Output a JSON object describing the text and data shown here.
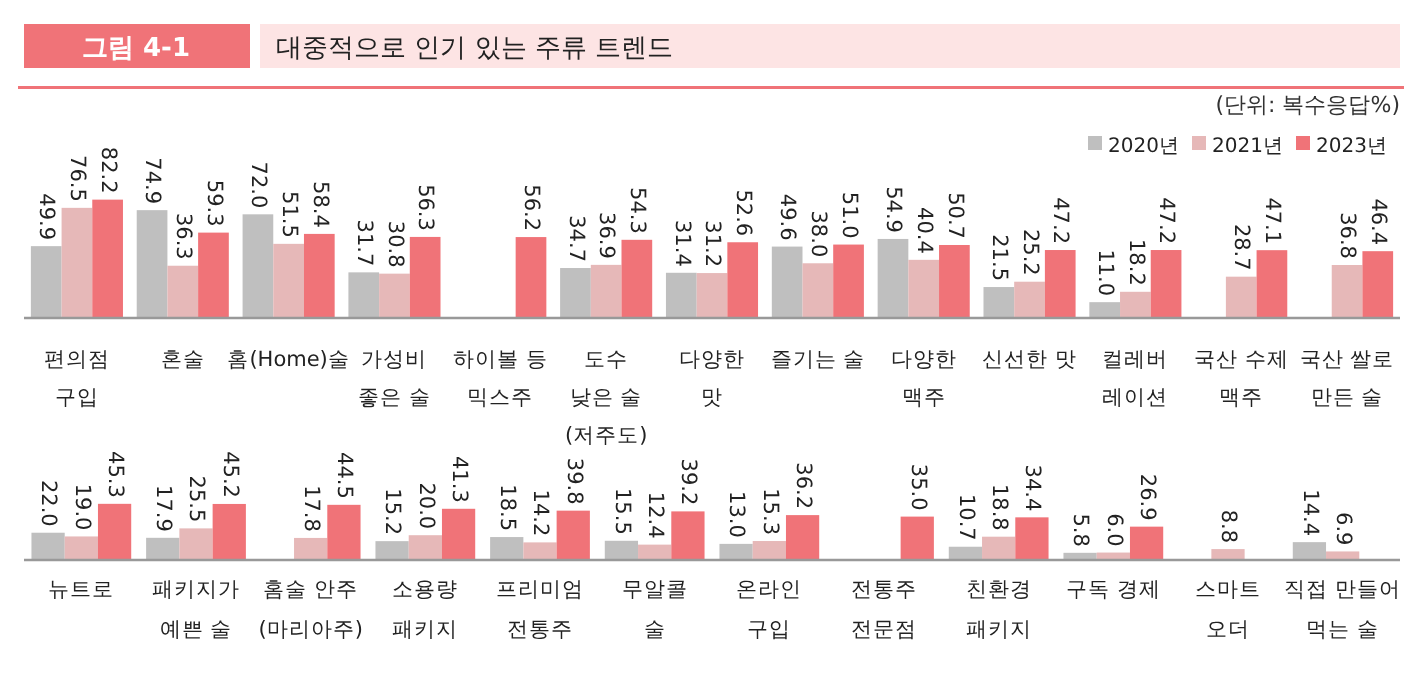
{
  "chart_data": [
    {
      "type": "bar",
      "title": "대중적으로 인기 있는 주류 트렌드",
      "annotations": [
        "그림 4-1",
        "(단위: 복수응답%)"
      ],
      "legend": "top right",
      "categories": [
        "편의점\n구입",
        "혼술",
        "홈(Home)술",
        "가성비\n좋은 술",
        "하이볼 등\n믹스주",
        "도수\n낮은 술\n(저주도)",
        "다양한\n맛",
        "즐기는 술",
        "다양한\n맥주",
        "신선한 맛",
        "컬레버\n레이션",
        "국산 수제\n맥주",
        "국산 쌀로\n만든 술"
      ],
      "series": [
        {
          "name": "2020년",
          "color": "#bfbfbf",
          "values": [
            49.9,
            74.9,
            72.0,
            31.7,
            null,
            34.7,
            31.4,
            49.6,
            54.9,
            21.5,
            11.0,
            null,
            null
          ],
          "value_labels": [
            "49.9",
            "74.9",
            "72.0",
            "31.7",
            null,
            "34.7",
            "31.4",
            "49.6",
            "54.9",
            "21.5",
            "11.0",
            null,
            null
          ]
        },
        {
          "name": "2021년",
          "color": "#e6b8b8",
          "values": [
            76.5,
            36.3,
            51.5,
            30.8,
            null,
            36.9,
            31.2,
            38.0,
            40.4,
            25.2,
            18.2,
            28.7,
            36.8
          ],
          "value_labels": [
            "76.5",
            "36.3",
            "51.5",
            "30.8",
            null,
            "36.9",
            "31.2",
            "38.0",
            "40.4",
            "25.2",
            "18.2",
            "28.7",
            "36.8"
          ]
        },
        {
          "name": "2023년",
          "color": "#f07378",
          "values": [
            82.2,
            59.3,
            58.4,
            56.3,
            56.2,
            54.3,
            52.6,
            51.0,
            50.7,
            47.2,
            47.2,
            47.1,
            46.4
          ],
          "value_labels": [
            "82.2",
            "59.3",
            "58.4",
            "56.3",
            "56.2",
            "54.3",
            "52.6",
            "51.0",
            "50.7",
            "47.2",
            "47.2",
            "47.1",
            "46.4"
          ]
        }
      ]
    },
    {
      "type": "bar",
      "categories": [
        "뉴트로",
        "패키지가\n예쁜 술",
        "홈술 안주\n(마리아주)",
        "소용량\n패키지",
        "프리미엄\n전통주",
        "무알콜\n술",
        "온라인\n구입",
        "전통주\n전문점",
        "친환경\n패키지",
        "구독 경제",
        "스마트\n오더",
        "직접 만들어\n먹는 술"
      ],
      "series": [
        {
          "color": "#bfbfbf",
          "values": [
            22.0,
            17.9,
            null,
            15.2,
            18.5,
            15.5,
            13.0,
            null,
            10.7,
            5.8,
            null,
            14.4
          ],
          "value_labels": [
            "22.0",
            "17.9",
            null,
            "15.2",
            "18.5",
            "15.5",
            "13.0",
            null,
            "10.7",
            "5.8",
            null,
            "14.4"
          ]
        },
        {
          "color": "#e6b8b8",
          "values": [
            19.0,
            25.5,
            17.8,
            20.0,
            14.2,
            12.4,
            15.3,
            null,
            18.8,
            6.0,
            8.8,
            6.9
          ],
          "value_labels": [
            "19.0",
            "25.5",
            "17.8",
            "20.0",
            "14.2",
            "12.4",
            "15.3",
            null,
            "18.8",
            "6.0",
            "8.8",
            "6.9"
          ]
        },
        {
          "color": "#f07378",
          "values": [
            45.3,
            45.2,
            44.5,
            41.3,
            39.8,
            39.2,
            36.2,
            35.0,
            34.4,
            26.9,
            null,
            null
          ],
          "value_labels": [
            "45.3",
            "45.2",
            "44.5",
            "41.3",
            "39.8",
            "39.2",
            "36.2",
            "35.0",
            "34.4",
            "26.9",
            null,
            null
          ]
        }
      ]
    }
  ]
}
